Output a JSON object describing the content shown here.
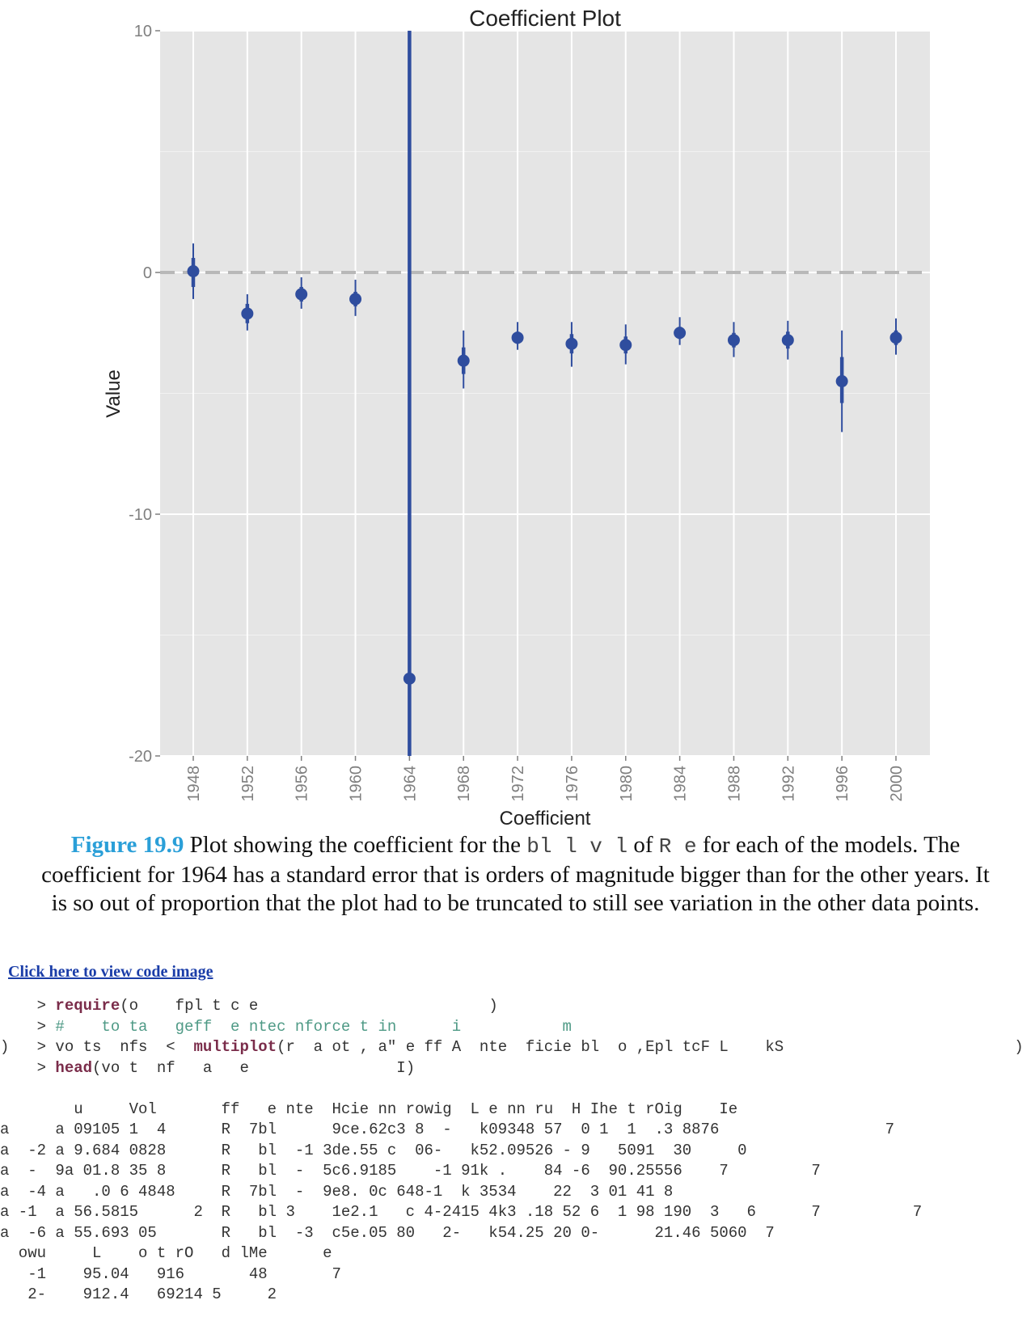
{
  "chart_data": {
    "type": "scatter",
    "title": "Coefficient Plot",
    "xlabel": "Coefficient",
    "ylabel": "Value",
    "categories": [
      "1948",
      "1952",
      "1956",
      "1960",
      "1964",
      "1968",
      "1972",
      "1976",
      "1980",
      "1984",
      "1988",
      "1992",
      "1996",
      "2000"
    ],
    "ylim": [
      -20,
      10
    ],
    "yticks": [
      10,
      0,
      -10,
      -20
    ],
    "ytick_labels": [
      "10",
      "0",
      "-10",
      "-20"
    ],
    "reference_line": 0,
    "grid": true,
    "series": [
      {
        "values": [
          0.05,
          -1.7,
          -0.9,
          -1.1,
          -16.8,
          -3.65,
          -2.7,
          -2.95,
          -3.0,
          -2.5,
          -2.8,
          -2.8,
          -4.5,
          -2.7
        ],
        "inner_lo": [
          -0.6,
          -2.1,
          -1.2,
          -1.4,
          -20,
          -4.2,
          -2.95,
          -3.35,
          -3.35,
          -2.75,
          -3.1,
          -3.15,
          -5.4,
          -3.0
        ],
        "inner_hi": [
          0.6,
          -1.3,
          -0.6,
          -0.8,
          10,
          -3.1,
          -2.45,
          -2.55,
          -2.65,
          -2.25,
          -2.5,
          -2.45,
          -3.5,
          -2.4
        ],
        "outer_lo": [
          -1.1,
          -2.4,
          -1.5,
          -1.8,
          -20,
          -4.8,
          -3.2,
          -3.9,
          -3.8,
          -3.0,
          -3.5,
          -3.6,
          -6.6,
          -3.4
        ],
        "outer_hi": [
          1.2,
          -0.9,
          -0.2,
          -0.3,
          10,
          -2.4,
          -2.05,
          -2.05,
          -2.15,
          -1.85,
          -2.05,
          -2.0,
          -2.4,
          -1.9
        ]
      }
    ]
  },
  "caption": {
    "figure_label": "Figure 19.9",
    "part1": " Plot showing the coefficient for the ",
    "mono1": "bl     l v l",
    "part2": " of ",
    "mono2": "R   e",
    "part3": " for each of the models. The coefficient for 1964 has a standard error that is orders of magnitude bigger than for the other years. It is so out of proportion that the plot had to be truncated to still see variation in the other data points."
  },
  "code_link": "Click here to view code image",
  "code_lines": [
    {
      "pre": "    > ",
      "fn": "require",
      "post": "(o    fpl t c e                         )"
    },
    {
      "pre": "    > ",
      "cm": "#    to ta   geff  e ntec nforce t in      i           m",
      "post": ""
    },
    {
      "pre": ")   > vo ts  nfs  <  ",
      "fn": "multiplot",
      "post": "(r  a ot , a\" e ff A  nte  ficie bl  o ,Epl tcF L    kS                         )"
    },
    {
      "pre": "    > ",
      "fn": "head",
      "post": "(vo t  nf   a   e                I)"
    },
    {
      "pre": "",
      "post": ""
    },
    {
      "pre": "        u     Vol       ff   e nte  Hcie nn rowig  L e nn ru  H Ihe t rOig    Ie",
      "post": ""
    },
    {
      "pre": "a     a 09105 1  4      R  7bl      9ce.62c3 8  -   k09348 57  0 1  1  .3 8876                  7",
      "post": ""
    },
    {
      "pre": "a  -2 a 9.684 0828      R   bl  -1 3de.55 c  06-   k52.09526 - 9   5091  30     0",
      "post": ""
    },
    {
      "pre": "a  -  9a 01.8 35 8      R   bl  -  5c6.9185    -1 91k .    84 -6  90.25556    7         7",
      "post": ""
    },
    {
      "pre": "a  -4 a   .0 6 4848     R  7bl  -  9e8. 0c 648-1  k 3534    22  3 01 41 8",
      "post": ""
    },
    {
      "pre": "a -1  a 56.5815      2  R   bl 3    1e2.1   c 4-2415 4k3 .18 52 6  1 98 190  3   6      7          7",
      "post": ""
    },
    {
      "pre": "a  -6 a 55.693 05       R   bl  -3  c5e.05 80   2-   k54.25 20 0-      21.46 5060  7",
      "post": ""
    },
    {
      "pre": "  owu     L    o t rO   d lMe      e",
      "post": ""
    },
    {
      "pre": "   -1    95.04   916       48       7",
      "post": ""
    },
    {
      "pre": "   2-    912.4   69214 5     2",
      "post": ""
    }
  ]
}
